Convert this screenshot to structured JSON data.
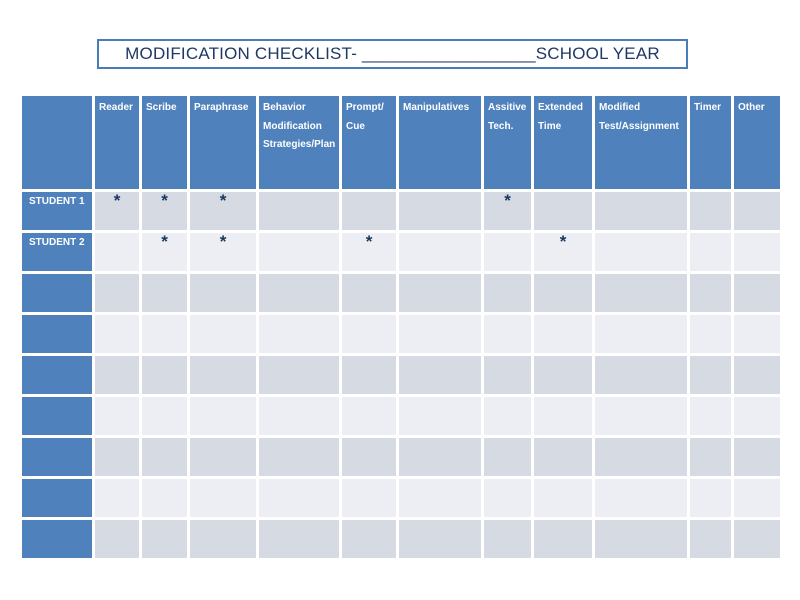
{
  "title": {
    "text": "MODIFICATION CHECKLIST- __________________SCHOOL YEAR"
  },
  "colors": {
    "header_blue": "#4f81bd",
    "band_dark": "#d6dbe3",
    "band_light": "#eceef3",
    "title_text": "#1f3864",
    "title_border": "#4a7db8",
    "mark_color": "#17375e"
  },
  "table": {
    "corner_label": "",
    "mark_symbol": "*",
    "columns": [
      "Reader",
      "Scribe",
      "Paraphrase",
      "Behavior Modification Strategies/Plan",
      "Prompt/ Cue",
      "Manipulatives",
      "Assitive Tech.",
      "Extended Time",
      "Modified Test/Assignment",
      "Timer",
      "Other"
    ],
    "rows": [
      {
        "label": "STUDENT 1",
        "cells": [
          "*",
          "*",
          "*",
          "",
          "",
          "",
          "*",
          "",
          "",
          "",
          ""
        ]
      },
      {
        "label": "STUDENT 2",
        "cells": [
          "",
          "*",
          "*",
          "",
          "*",
          "",
          "",
          "*",
          "",
          "",
          ""
        ]
      },
      {
        "label": "",
        "cells": [
          "",
          "",
          "",
          "",
          "",
          "",
          "",
          "",
          "",
          "",
          ""
        ]
      },
      {
        "label": "",
        "cells": [
          "",
          "",
          "",
          "",
          "",
          "",
          "",
          "",
          "",
          "",
          ""
        ]
      },
      {
        "label": "",
        "cells": [
          "",
          "",
          "",
          "",
          "",
          "",
          "",
          "",
          "",
          "",
          ""
        ]
      },
      {
        "label": "",
        "cells": [
          "",
          "",
          "",
          "",
          "",
          "",
          "",
          "",
          "",
          "",
          ""
        ]
      },
      {
        "label": "",
        "cells": [
          "",
          "",
          "",
          "",
          "",
          "",
          "",
          "",
          "",
          "",
          ""
        ]
      },
      {
        "label": "",
        "cells": [
          "",
          "",
          "",
          "",
          "",
          "",
          "",
          "",
          "",
          "",
          ""
        ]
      },
      {
        "label": "",
        "cells": [
          "",
          "",
          "",
          "",
          "",
          "",
          "",
          "",
          "",
          "",
          ""
        ]
      }
    ]
  }
}
